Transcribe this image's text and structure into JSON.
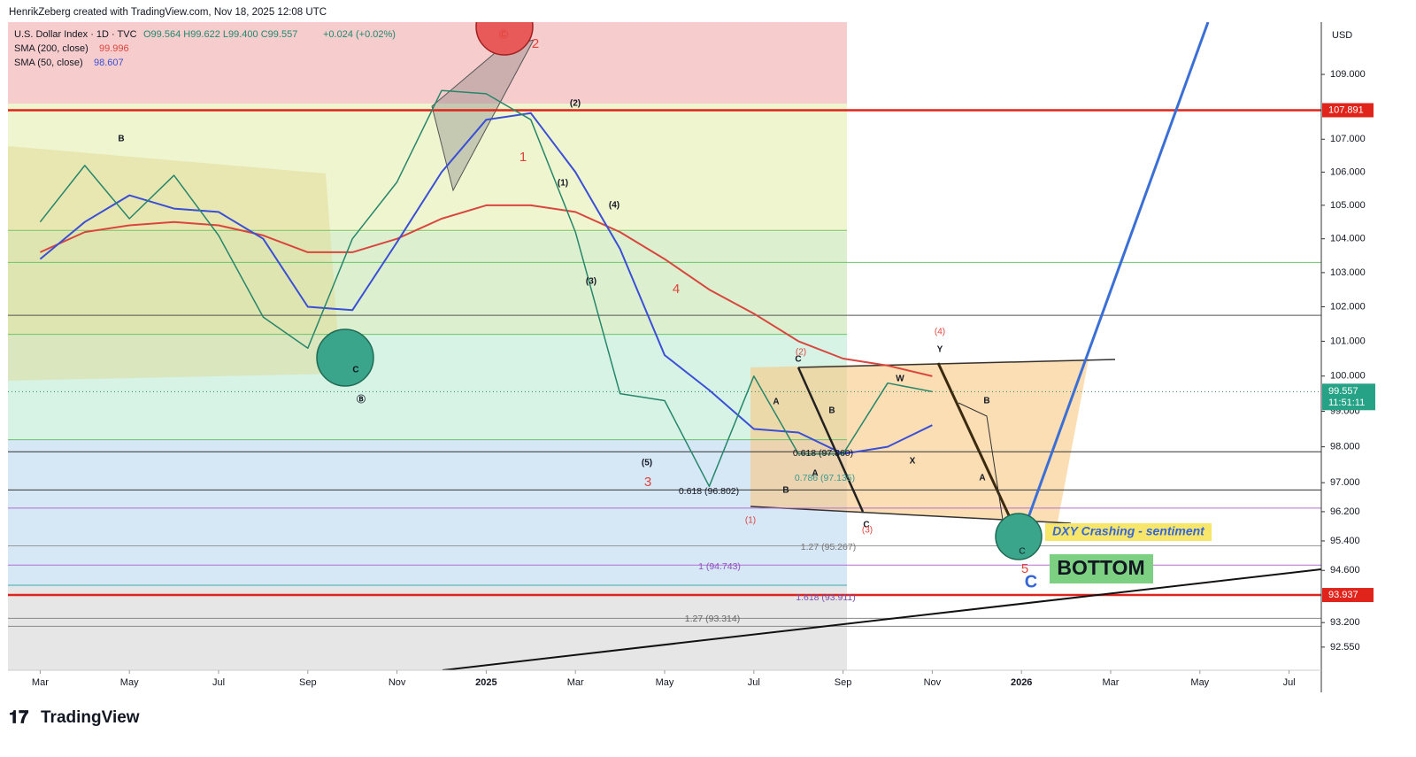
{
  "header": "HenrikZeberg created with TradingView.com, Nov 18, 2025 12:08 UTC",
  "footer": "TradingView",
  "chart_data": {
    "type": "line",
    "log_scale": true,
    "legend": {
      "symbol": "U.S. Dollar Index · 1D · TVC",
      "ohlc": "O99.564 H99.622 L99.400 C99.557",
      "change": "+0.024 (+0.02%)"
    },
    "currency": "USD",
    "last_price": 99.557,
    "countdown": "11:51:11",
    "x": [
      "2024-03",
      "2024-04",
      "2024-05",
      "2024-06",
      "2024-07",
      "2024-08",
      "2024-09",
      "2024-10",
      "2024-11",
      "2024-12",
      "2025-01",
      "2025-02",
      "2025-03",
      "2025-04",
      "2025-05",
      "2025-06",
      "2025-07",
      "2025-08",
      "2025-09",
      "2025-10",
      "2025-11"
    ],
    "price": {
      "color": "#26866a",
      "values": [
        104.5,
        106.2,
        104.6,
        105.9,
        104.1,
        101.7,
        100.8,
        104.0,
        105.7,
        108.5,
        108.4,
        107.6,
        104.2,
        99.5,
        99.3,
        96.9,
        100.0,
        97.8,
        97.8,
        99.8,
        99.557
      ]
    },
    "series": [
      {
        "name": "SMA (200, close)",
        "color": "#d9463e",
        "last": 99.996,
        "values": [
          103.6,
          104.2,
          104.4,
          104.5,
          104.4,
          104.1,
          103.6,
          103.6,
          104.0,
          104.6,
          105.0,
          105.0,
          104.8,
          104.2,
          103.4,
          102.5,
          101.8,
          101.0,
          100.5,
          100.3,
          99.996
        ]
      },
      {
        "name": "SMA (50, close)",
        "color": "#3a4fd6",
        "last": 98.607,
        "values": [
          103.4,
          104.5,
          105.3,
          104.9,
          104.8,
          104.0,
          102.0,
          101.9,
          103.9,
          106.0,
          107.6,
          107.8,
          106.0,
          103.7,
          100.6,
          99.6,
          98.5,
          98.4,
          97.8,
          98.0,
          98.607
        ]
      }
    ],
    "xlim": [
      "2024-02",
      "2026-08"
    ],
    "xticks": [
      {
        "value": "2024-03",
        "label": "Mar"
      },
      {
        "value": "2024-05",
        "label": "May"
      },
      {
        "value": "2024-07",
        "label": "Jul"
      },
      {
        "value": "2024-09",
        "label": "Sep"
      },
      {
        "value": "2024-11",
        "label": "Nov"
      },
      {
        "value": "2025-01",
        "label": "2025"
      },
      {
        "value": "2025-03",
        "label": "Mar"
      },
      {
        "value": "2025-05",
        "label": "May"
      },
      {
        "value": "2025-07",
        "label": "Jul"
      },
      {
        "value": "2025-09",
        "label": "Sep"
      },
      {
        "value": "2025-11",
        "label": "Nov"
      },
      {
        "value": "2026-01",
        "label": "2026"
      },
      {
        "value": "2026-03",
        "label": "Mar"
      },
      {
        "value": "2026-05",
        "label": "May"
      },
      {
        "value": "2026-07",
        "label": "Jul"
      }
    ],
    "ylim": [
      91.94,
      110.64
    ],
    "yticks": [
      {
        "value": 109,
        "label": "109.000"
      },
      {
        "value": 107,
        "label": "107.000"
      },
      {
        "value": 106,
        "label": "106.000"
      },
      {
        "value": 105,
        "label": "105.000"
      },
      {
        "value": 104,
        "label": "104.000"
      },
      {
        "value": 103,
        "label": "103.000"
      },
      {
        "value": 102,
        "label": "102.000"
      },
      {
        "value": 101,
        "label": "101.000"
      },
      {
        "value": 100,
        "label": "100.000"
      },
      {
        "value": 99,
        "label": "99.000"
      },
      {
        "value": 98,
        "label": "98.000"
      },
      {
        "value": 97,
        "label": "97.000"
      },
      {
        "value": 96.2,
        "label": "96.200"
      },
      {
        "value": 95.4,
        "label": "95.400"
      },
      {
        "value": 94.6,
        "label": "94.600"
      },
      {
        "value": 93.2,
        "label": "93.200"
      },
      {
        "value": 92.55,
        "label": "92.550"
      }
    ],
    "levels": [
      {
        "value": 107.891,
        "color": "#e0241b",
        "full": true,
        "badge": true
      },
      {
        "value": 93.937,
        "color": "#e0241b",
        "full": true,
        "badge": true
      },
      {
        "value": 101.75,
        "color": "#555555",
        "full": true
      },
      {
        "value": 103.3,
        "color": "#6cc46c",
        "full": true
      },
      {
        "value": 104.25,
        "color": "#6cc46c",
        "full": false
      },
      {
        "value": 101.2,
        "color": "#6cc46c",
        "full": false
      },
      {
        "value": 98.2,
        "color": "#6cc46c",
        "full": false
      },
      {
        "value": 94.2,
        "color": "#4aa8a0",
        "full": false
      },
      {
        "value": 97.86,
        "color": "#333333",
        "full": true
      },
      {
        "value": 96.8,
        "color": "#333333",
        "full": true
      },
      {
        "value": 96.3,
        "color": "#b070d0",
        "full": true
      },
      {
        "value": 95.267,
        "color": "#999999",
        "full": true
      },
      {
        "value": 94.743,
        "color": "#b070d0",
        "full": true
      },
      {
        "value": 93.314,
        "color": "#888888",
        "full": true
      },
      {
        "value": 93.1,
        "color": "#888888",
        "full": true
      }
    ]
  },
  "annotations": [
    "B",
    "Ⓑ",
    "C",
    "Ⓒ",
    "2",
    "1",
    "(2)",
    "(1)",
    "(4)",
    "(3)",
    "4",
    "(5)",
    "3",
    "0.618 (96.802)",
    "(1)",
    "A",
    "B",
    "C",
    "(2)",
    "B",
    "0.618 (97.860)",
    "A",
    "0.786 (97.135)",
    "C",
    "(3)",
    "W",
    "X",
    "Y",
    "(4)",
    "B",
    "A",
    "1.27 (95.267)",
    "1 (94.743)",
    "1.618 (93.911)",
    "1.27 (93.314)",
    "DXY Crashing - sentiment",
    "5",
    "C",
    "BOTTOM",
    "C"
  ]
}
